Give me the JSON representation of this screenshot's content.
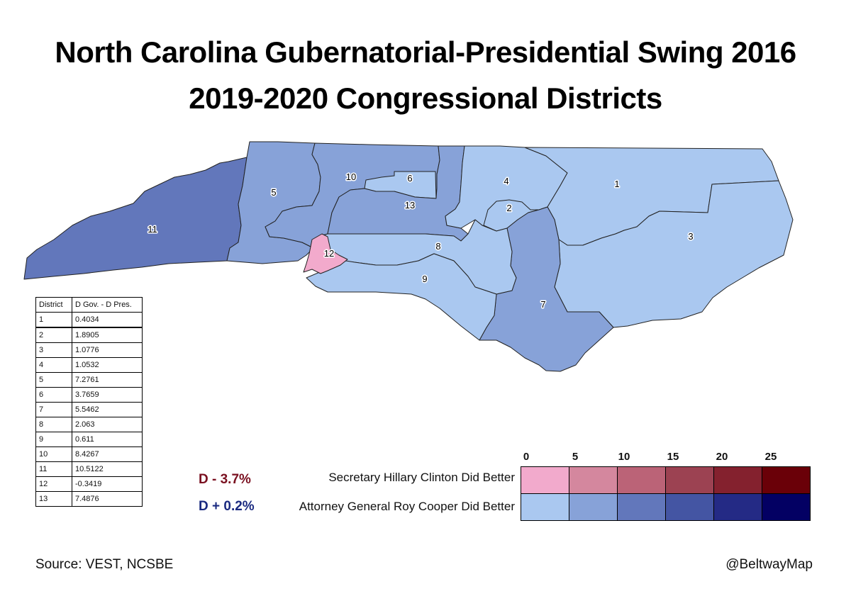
{
  "title_line1": "North Carolina Gubernatorial-Presidential Swing 2016",
  "title_line2": "2019-2020 Congressional Districts",
  "colors": {
    "pink": "#f2aacc",
    "lightest_blue": "#aac8f0",
    "light_blue": "#87a2d8",
    "mid_blue": "#6277bb",
    "border": "#222222"
  },
  "districts": [
    {
      "id": "1",
      "label": "1",
      "value": "0.4034",
      "color": "#aac8f0"
    },
    {
      "id": "2",
      "label": "2",
      "value": "1.8905",
      "color": "#aac8f0"
    },
    {
      "id": "3",
      "label": "3",
      "value": "1.0776",
      "color": "#aac8f0"
    },
    {
      "id": "4",
      "label": "4",
      "value": "1.0532",
      "color": "#aac8f0"
    },
    {
      "id": "5",
      "label": "5",
      "value": "7.2761",
      "color": "#87a2d8"
    },
    {
      "id": "6",
      "label": "6",
      "value": "3.7659",
      "color": "#aac8f0"
    },
    {
      "id": "7",
      "label": "7",
      "value": "5.5462",
      "color": "#87a2d8"
    },
    {
      "id": "8",
      "label": "8",
      "value": "2.063",
      "color": "#aac8f0"
    },
    {
      "id": "9",
      "label": "9",
      "value": "0.611",
      "color": "#aac8f0"
    },
    {
      "id": "10",
      "label": "10",
      "value": "8.4267",
      "color": "#87a2d8"
    },
    {
      "id": "11",
      "label": "11",
      "value": "10.5122",
      "color": "#6277bb"
    },
    {
      "id": "12",
      "label": "12",
      "value": "-0.3419",
      "color": "#f2aacc"
    },
    {
      "id": "13",
      "label": "13",
      "value": "7.4876",
      "color": "#87a2d8"
    }
  ],
  "table": {
    "col_district": "District",
    "col_value": "D Gov. - D Pres."
  },
  "legend": {
    "clinton_stat": "D - 3.7%",
    "cooper_stat": "D + 0.2%",
    "clinton_stat_color": "#7a1020",
    "cooper_stat_color": "#1a2a80",
    "clinton_row": "Secretary Hillary Clinton Did Better",
    "cooper_row": "Attorney General Roy Cooper Did Better",
    "ticks": [
      "0",
      "5",
      "10",
      "15",
      "20",
      "25"
    ],
    "clinton_colors": [
      "#f2aacc",
      "#d4879e",
      "#bb6377",
      "#9c4252",
      "#84212e",
      "#6a0008"
    ],
    "cooper_colors": [
      "#aac8f0",
      "#87a2d8",
      "#6277bb",
      "#4455a3",
      "#242a85",
      "#030063"
    ]
  },
  "source": "Source: VEST, NCSBE",
  "credit": "@BeltwayMap"
}
